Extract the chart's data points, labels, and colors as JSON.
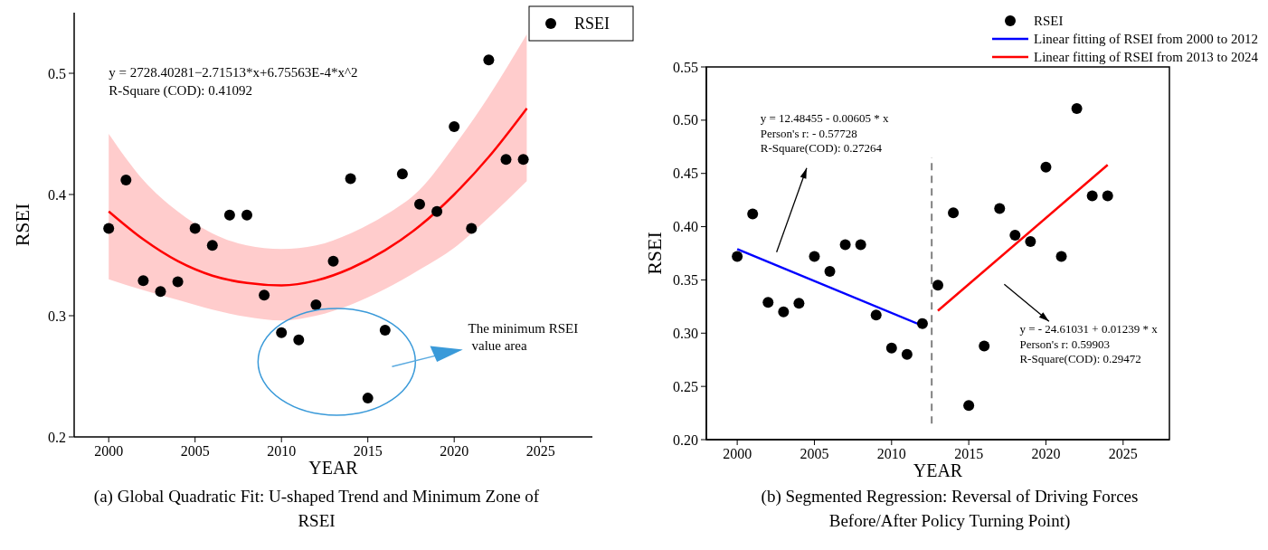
{
  "chart_data": [
    {
      "type": "scatter",
      "title": "(a) Global Quadratic Fit: U-shaped Trend and Minimum Zone of RSEI",
      "xlabel": "YEAR",
      "ylabel": "RSEI",
      "xlim": [
        1998,
        2028
      ],
      "ylim": [
        0.2,
        0.55
      ],
      "xticks": [
        2000,
        2005,
        2010,
        2015,
        2020,
        2025
      ],
      "yticks": [
        0.2,
        0.3,
        0.4,
        0.5
      ],
      "legend": "top right",
      "annotations": [
        "y = 2728.40281−2.71513*x+6.75563E-4*x^2",
        "R-Square (COD): 0.41092",
        "The minimum RSEI value area"
      ],
      "series": [
        {
          "name": "RSEI",
          "marker": "circle",
          "color": "#000000",
          "x": [
            2000,
            2001,
            2002,
            2003,
            2004,
            2005,
            2006,
            2007,
            2008,
            2009,
            2010,
            2011,
            2012,
            2013,
            2014,
            2015,
            2016,
            2017,
            2018,
            2019,
            2020,
            2021,
            2022,
            2023,
            2024
          ],
          "values": [
            0.372,
            0.412,
            0.329,
            0.32,
            0.328,
            0.372,
            0.358,
            0.383,
            0.383,
            0.317,
            0.286,
            0.28,
            0.309,
            0.345,
            0.413,
            0.232,
            0.288,
            0.417,
            0.392,
            0.386,
            0.456,
            0.372,
            0.511,
            0.429,
            0.429
          ]
        },
        {
          "type": "line",
          "color": "#ff0000",
          "x": [
            2000,
            2002,
            2004,
            2006,
            2008,
            2010,
            2012,
            2014,
            2016,
            2018,
            2020,
            2022,
            2024.2
          ],
          "values": [
            0.386,
            0.363,
            0.345,
            0.333,
            0.327,
            0.325,
            0.329,
            0.339,
            0.354,
            0.374,
            0.4,
            0.431,
            0.471
          ],
          "lower": [
            0.33,
            0.321,
            0.313,
            0.305,
            0.299,
            0.296,
            0.3,
            0.309,
            0.322,
            0.338,
            0.356,
            0.381,
            0.411
          ],
          "upper": [
            0.45,
            0.412,
            0.386,
            0.368,
            0.358,
            0.355,
            0.358,
            0.368,
            0.383,
            0.404,
            0.44,
            0.481,
            0.532
          ]
        }
      ]
    },
    {
      "type": "scatter",
      "title": "(b) Segmented Regression: Reversal of Driving Forces Before/After Policy Turning Point)",
      "xlabel": "YEAR",
      "ylabel": "RSEI",
      "xlim": [
        1998,
        2028
      ],
      "ylim": [
        0.2,
        0.55
      ],
      "xticks": [
        2000,
        2005,
        2010,
        2015,
        2020,
        2025
      ],
      "yticks": [
        {
          "value": 0.2,
          "label": "0.20"
        },
        {
          "value": 0.25,
          "label": "0.25"
        },
        {
          "value": 0.3,
          "label": "0.30"
        },
        {
          "value": 0.35,
          "label": "0.35"
        },
        {
          "value": 0.4,
          "label": "0.40"
        },
        {
          "value": 0.45,
          "label": "0.45"
        },
        {
          "value": 0.5,
          "label": "0.50"
        },
        {
          "value": 0.55,
          "label": "0.55"
        }
      ],
      "legend": "top",
      "annotations": [
        "y = 12.48455 - 0.00605 * x",
        "Person's r: - 0.57728",
        "R-Square(COD): 0.27264",
        "y = - 24.61031 + 0.01239 * x",
        "Person's r: 0.59903",
        "R-Square(COD): 0.29472"
      ],
      "ref_lines": [
        {
          "axis": "x",
          "value": 2012.6,
          "color": "#808080",
          "line_style": "dashed"
        }
      ],
      "series": [
        {
          "name": "RSEI",
          "marker": "circle",
          "color": "#000000",
          "x": [
            2000,
            2001,
            2002,
            2003,
            2004,
            2005,
            2006,
            2007,
            2008,
            2009,
            2010,
            2011,
            2012,
            2013,
            2014,
            2015,
            2016,
            2017,
            2018,
            2019,
            2020,
            2021,
            2022,
            2023,
            2024
          ],
          "values": [
            0.372,
            0.412,
            0.329,
            0.32,
            0.328,
            0.372,
            0.358,
            0.383,
            0.383,
            0.317,
            0.286,
            0.28,
            0.309,
            0.345,
            0.413,
            0.232,
            0.288,
            0.417,
            0.392,
            0.386,
            0.456,
            0.372,
            0.511,
            0.429,
            0.429
          ]
        },
        {
          "name": "Linear fitting of RSEI from 2000 to 2012",
          "type": "line",
          "color": "#0000ff",
          "x": [
            2000,
            2012
          ],
          "values": [
            0.379,
            0.307
          ]
        },
        {
          "name": "Linear fitting of RSEI from 2013 to 2024",
          "type": "line",
          "color": "#ff0000",
          "x": [
            2013,
            2024
          ],
          "values": [
            0.321,
            0.458
          ]
        }
      ]
    }
  ]
}
